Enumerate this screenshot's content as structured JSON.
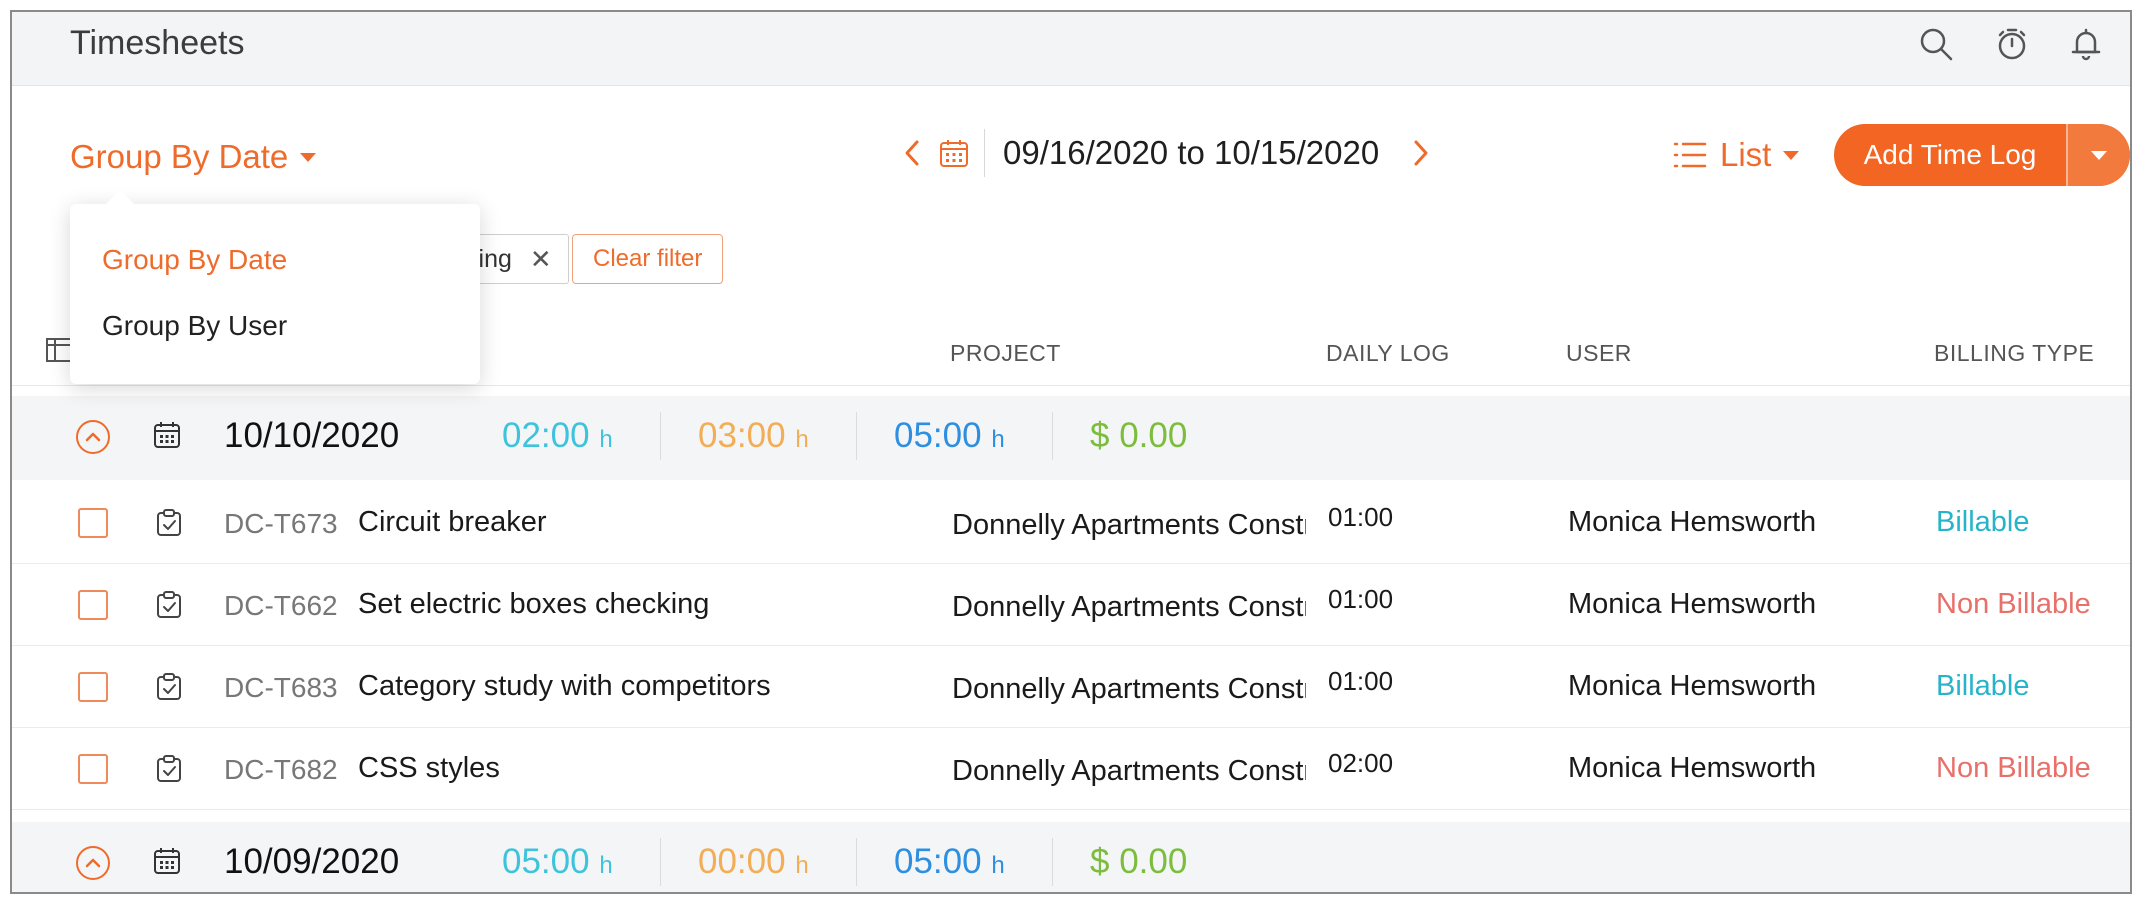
{
  "header": {
    "title": "Timesheets"
  },
  "toolbar": {
    "group_by_label": "Group By Date",
    "date_range": "09/16/2020 to 10/15/2020",
    "view_label": "List",
    "add_button_label": "Add Time Log"
  },
  "group_menu": {
    "items": [
      {
        "label": "Group By Date",
        "selected": true
      },
      {
        "label": "Group By User",
        "selected": false
      }
    ]
  },
  "filters": {
    "chip_label_partial": "ling",
    "clear_label": "Clear filter"
  },
  "table": {
    "columns": {
      "project": "PROJECT",
      "daily_log": "DAILY LOG",
      "user": "USER",
      "billing_type": "BILLING TYPE"
    },
    "unit": "h",
    "groups": [
      {
        "date": "10/10/2020",
        "billable_hours": "02:00",
        "non_billable_hours": "03:00",
        "total_hours": "05:00",
        "amount": "$ 0.00",
        "rows": [
          {
            "id": "DC-T673",
            "name": "Circuit breaker",
            "project": "Donnelly Apartments Construction",
            "log": "01:00",
            "user": "Monica Hemsworth",
            "billing": "Billable"
          },
          {
            "id": "DC-T662",
            "name": "Set electric boxes checking",
            "project": "Donnelly Apartments Construction",
            "log": "01:00",
            "user": "Monica Hemsworth",
            "billing": "Non Billable"
          },
          {
            "id": "DC-T683",
            "name": "Category study with competitors",
            "project": "Donnelly Apartments Construction",
            "log": "01:00",
            "user": "Monica Hemsworth",
            "billing": "Billable"
          },
          {
            "id": "DC-T682",
            "name": "CSS styles",
            "project": "Donnelly Apartments Construction",
            "log": "02:00",
            "user": "Monica Hemsworth",
            "billing": "Non Billable"
          }
        ]
      },
      {
        "date": "10/09/2020",
        "billable_hours": "05:00",
        "non_billable_hours": "00:00",
        "total_hours": "05:00",
        "amount": "$ 0.00",
        "rows": []
      }
    ]
  },
  "colors": {
    "accent": "#ef6b2c",
    "billable": "#27b3c9",
    "non_billable": "#e8706a",
    "billable_hours": "#3fc3dc",
    "non_billable_hours": "#f2ad57",
    "total_hours": "#2e8fe0",
    "amount": "#7cbd3c"
  }
}
